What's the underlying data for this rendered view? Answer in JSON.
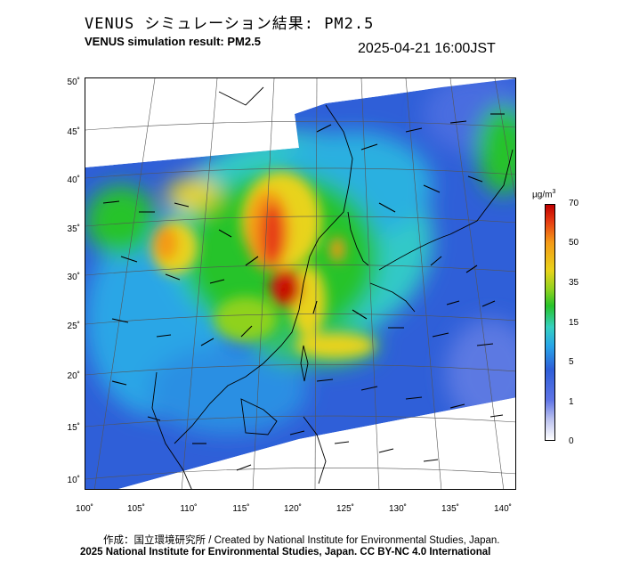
{
  "header": {
    "title_jp": "VENUS シミュレーション結果: PM2.5",
    "title_en": "VENUS simulation result: PM2.5",
    "timestamp": "2025-04-21 16:00JST"
  },
  "map": {
    "variable": "PM2.5",
    "latitude_labels": [
      "50˚",
      "45˚",
      "40˚",
      "35˚",
      "30˚",
      "25˚",
      "20˚",
      "15˚",
      "10˚"
    ],
    "longitude_labels": [
      "100˚",
      "105˚",
      "110˚",
      "115˚",
      "120˚",
      "125˚",
      "130˚",
      "135˚",
      "140˚"
    ],
    "lat_range": [
      9,
      50
    ],
    "lon_range": [
      100,
      141
    ]
  },
  "colorbar": {
    "unit_base": "µg/m",
    "unit_sup": "3",
    "ticks": [
      "70",
      "50",
      "35",
      "15",
      "5",
      "1",
      "0"
    ],
    "tick_values": [
      70,
      50,
      35,
      15,
      5,
      1,
      0
    ],
    "colors": [
      "#ffffff",
      "#b8bfee",
      "#5f74e6",
      "#2e5ed8",
      "#28a5e8",
      "#35d0c0",
      "#27c32b",
      "#8fd21f",
      "#e8d31a",
      "#f49a17",
      "#e63b12",
      "#c00000"
    ]
  },
  "footer": {
    "credit_line": "作成：国立環境研究所 / Created by National Institute for Environmental Studies, Japan.",
    "license_line": "2025 National Institute for Environmental Studies, Japan. CC BY-NC 4.0 International"
  }
}
